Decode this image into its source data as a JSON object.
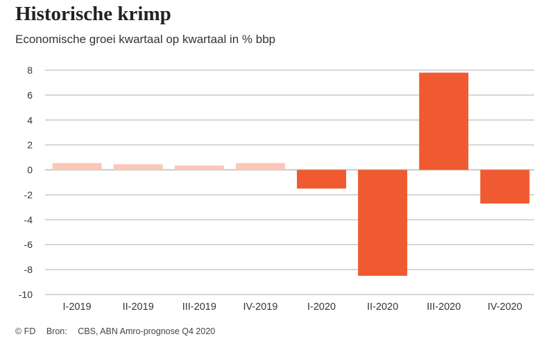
{
  "chart_data": {
    "type": "bar",
    "title": "Historische krimp",
    "subtitle": "Economische groei kwartaal op kwartaal in % bbp",
    "categories": [
      "I-2019",
      "II-2019",
      "III-2019",
      "IV-2019",
      "I-2020",
      "II-2020",
      "III-2020",
      "IV-2020"
    ],
    "values": [
      0.55,
      0.45,
      0.35,
      0.55,
      -1.5,
      -8.5,
      7.8,
      -2.7
    ],
    "ylim": [
      -10,
      8
    ],
    "yticks": [
      8,
      6,
      4,
      2,
      0,
      -2,
      -4,
      -6,
      -8,
      -10
    ],
    "grid": true,
    "colors": {
      "2019": "#fbc7b8",
      "2020": "#f05a30",
      "grid": "#c8c8c8"
    }
  },
  "footer": {
    "copyright": "© FD",
    "source_label": "Bron:",
    "source": "CBS, ABN Amro-prognose Q4 2020"
  }
}
